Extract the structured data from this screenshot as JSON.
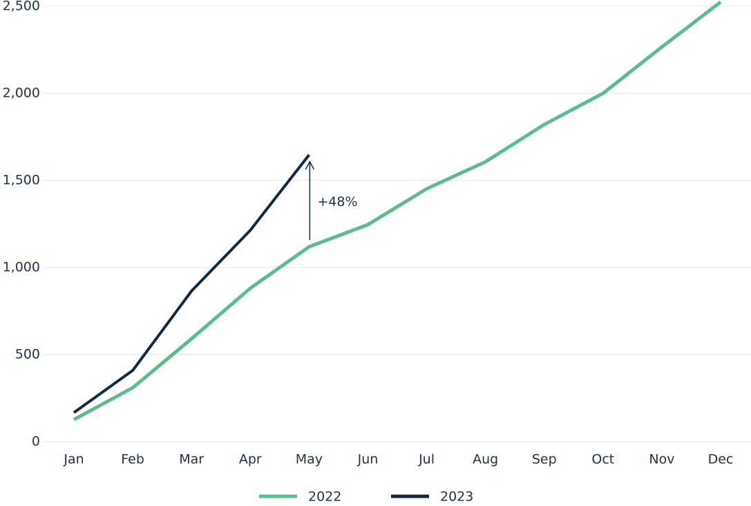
{
  "chart_data": {
    "type": "line",
    "categories": [
      "Jan",
      "Feb",
      "Mar",
      "Apr",
      "May",
      "Jun",
      "Jul",
      "Aug",
      "Sep",
      "Oct",
      "Nov",
      "Dec"
    ],
    "series": [
      {
        "name": "2022",
        "color": "#5dbb8e",
        "values": [
          127,
          310,
          591,
          881,
          1119,
          1246,
          1452,
          1607,
          1821,
          2000,
          2266,
          2524
        ]
      },
      {
        "name": "2023",
        "color": "#13283f",
        "values": [
          167,
          409,
          865,
          1214,
          1647,
          null,
          null,
          null,
          null,
          null,
          null,
          null
        ]
      }
    ],
    "ylim": [
      0,
      2536
    ],
    "yticks": [
      0,
      500,
      {
        "value": 1000,
        "label": "1,000"
      },
      {
        "value": 1500,
        "label": "1,500"
      },
      {
        "value": 2000,
        "label": "2,000"
      },
      {
        "value": 2500,
        "label": "2,500"
      }
    ],
    "grid": true,
    "annotation": "+48%",
    "legend": "bottom"
  }
}
